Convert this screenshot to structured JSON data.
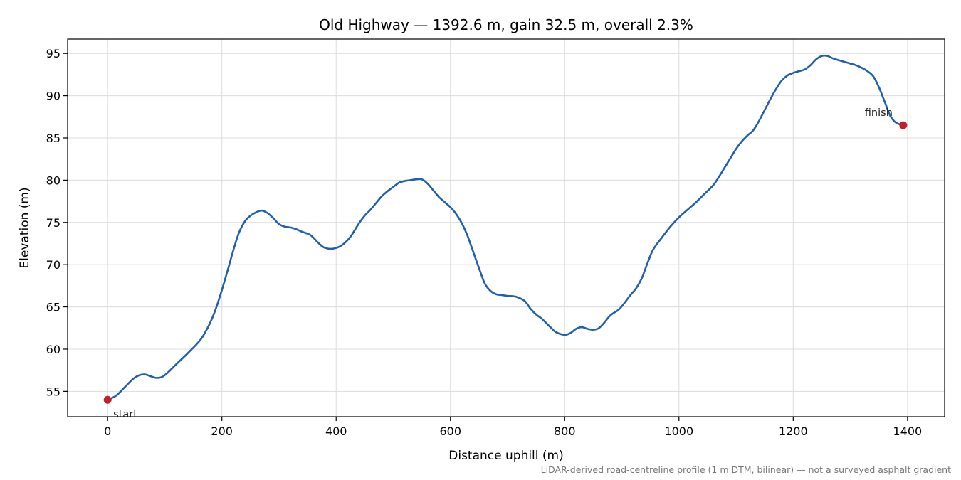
{
  "chart_data": {
    "type": "line",
    "title": "Old Highway — 1392.6 m, gain 32.5 m, overall 2.3%",
    "xlabel": "Distance uphill (m)",
    "ylabel": "Elevation (m)",
    "footnote": "LiDAR-derived road-centreline profile (1 m DTM, bilinear) — not a surveyed asphalt gradient",
    "xlim": [
      -70,
      1465
    ],
    "ylim": [
      52,
      96.7
    ],
    "xticks": [
      0,
      200,
      400,
      600,
      800,
      1000,
      1200,
      1400
    ],
    "yticks": [
      55,
      60,
      65,
      70,
      75,
      80,
      85,
      90,
      95
    ],
    "grid": true,
    "line_color": "#1f5fad",
    "marker_color": "#c41e2a",
    "series": [
      {
        "x": [
          0,
          15,
          30,
          45,
          55,
          65,
          75,
          85,
          95,
          105,
          120,
          140,
          160,
          170,
          180,
          190,
          200,
          210,
          220,
          230,
          240,
          250,
          260,
          270,
          280,
          290,
          300,
          310,
          320,
          330,
          340,
          355,
          370,
          380,
          395,
          410,
          425,
          440,
          450,
          460,
          470,
          480,
          490,
          500,
          510,
          520,
          530,
          540,
          550,
          560,
          570,
          580,
          590,
          600,
          610,
          620,
          630,
          640,
          650,
          660,
          670,
          680,
          690,
          700,
          715,
          730,
          740,
          750,
          760,
          775,
          785,
          800,
          810,
          820,
          830,
          840,
          850,
          860,
          870,
          880,
          895,
          905,
          915,
          925,
          935,
          945,
          955,
          970,
          985,
          1000,
          1015,
          1030,
          1045,
          1060,
          1070,
          1080,
          1090,
          1100,
          1110,
          1120,
          1130,
          1140,
          1150,
          1160,
          1170,
          1180,
          1190,
          1200,
          1210,
          1220,
          1230,
          1240,
          1250,
          1260,
          1270,
          1280,
          1290,
          1300,
          1310,
          1320,
          1330,
          1340,
          1350,
          1360,
          1370,
          1380,
          1392.6
        ],
        "y": [
          54.0,
          54.5,
          55.5,
          56.5,
          56.9,
          57.0,
          56.8,
          56.6,
          56.7,
          57.2,
          58.2,
          59.5,
          60.9,
          61.9,
          63.2,
          64.9,
          67.0,
          69.3,
          71.7,
          73.8,
          75.1,
          75.8,
          76.2,
          76.4,
          76.1,
          75.5,
          74.8,
          74.5,
          74.4,
          74.2,
          73.9,
          73.5,
          72.5,
          72.0,
          71.9,
          72.3,
          73.3,
          74.9,
          75.8,
          76.5,
          77.3,
          78.1,
          78.7,
          79.2,
          79.7,
          79.9,
          80.0,
          80.1,
          80.1,
          79.6,
          78.8,
          78.0,
          77.4,
          76.8,
          76.0,
          74.9,
          73.4,
          71.5,
          69.6,
          67.8,
          66.9,
          66.5,
          66.4,
          66.3,
          66.2,
          65.7,
          64.8,
          64.1,
          63.6,
          62.6,
          62.0,
          61.7,
          61.9,
          62.4,
          62.6,
          62.4,
          62.3,
          62.5,
          63.2,
          64.0,
          64.7,
          65.5,
          66.4,
          67.2,
          68.4,
          70.2,
          71.8,
          73.2,
          74.5,
          75.6,
          76.5,
          77.4,
          78.4,
          79.4,
          80.4,
          81.5,
          82.6,
          83.7,
          84.6,
          85.3,
          85.9,
          87.0,
          88.3,
          89.6,
          90.8,
          91.8,
          92.4,
          92.7,
          92.9,
          93.1,
          93.6,
          94.3,
          94.7,
          94.7,
          94.4,
          94.2,
          94.0,
          93.8,
          93.6,
          93.3,
          92.9,
          92.3,
          91.0,
          89.3,
          87.6,
          86.8,
          86.5
        ]
      }
    ],
    "annotations": [
      {
        "text": "start",
        "x": 0,
        "y": 54.0
      },
      {
        "text": "finish",
        "x": 1392.6,
        "y": 86.5
      }
    ]
  }
}
